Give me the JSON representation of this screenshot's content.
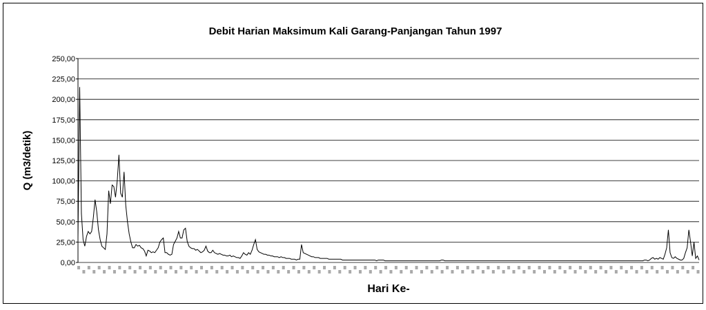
{
  "chart_data": {
    "type": "line",
    "title": "Debit Harian Maksimum Kali Garang-Panjangan Tahun 1997",
    "y_label": "Q (m3/detik)",
    "x_label": "Hari Ke-",
    "color": "#000000",
    "grid": true,
    "ylim": [
      0,
      250
    ],
    "yticks": [
      {
        "value": 0,
        "label": "0,00"
      },
      {
        "value": 25,
        "label": "25,00"
      },
      {
        "value": 50,
        "label": "50,00"
      },
      {
        "value": 75,
        "label": "75,00"
      },
      {
        "value": 100,
        "label": "100,00"
      },
      {
        "value": 125,
        "label": "125,00"
      },
      {
        "value": 150,
        "label": "150,00"
      },
      {
        "value": 175,
        "label": "175,00"
      },
      {
        "value": 200,
        "label": "200,00"
      },
      {
        "value": 225,
        "label": "225,00"
      },
      {
        "value": 250,
        "label": "250,00"
      }
    ],
    "values": [
      30,
      215,
      60,
      28,
      20,
      32,
      38,
      35,
      38,
      55,
      77,
      62,
      40,
      28,
      20,
      18,
      16,
      35,
      88,
      72,
      95,
      93,
      80,
      100,
      132,
      85,
      80,
      111,
      70,
      50,
      35,
      25,
      18,
      18,
      22,
      20,
      21,
      18,
      17,
      14,
      8,
      15,
      14,
      12,
      13,
      12,
      15,
      18,
      25,
      28,
      30,
      12,
      12,
      10,
      9,
      10,
      22,
      26,
      30,
      38,
      30,
      30,
      40,
      42,
      26,
      20,
      18,
      17,
      17,
      15,
      16,
      14,
      12,
      13,
      15,
      20,
      14,
      12,
      12,
      15,
      12,
      11,
      10,
      11,
      10,
      9,
      9,
      8,
      8,
      9,
      7,
      8,
      7,
      6,
      6,
      5,
      8,
      12,
      10,
      9,
      12,
      10,
      15,
      22,
      28,
      16,
      13,
      12,
      11,
      10,
      10,
      9,
      9,
      8,
      8,
      7,
      7,
      7,
      6,
      7,
      6,
      6,
      5,
      5,
      5,
      4,
      4,
      4,
      3,
      4,
      4,
      22,
      12,
      11,
      10,
      9,
      8,
      7,
      7,
      6,
      6,
      6,
      5,
      5,
      5,
      5,
      5,
      4,
      4,
      4,
      4,
      4,
      4,
      4,
      4,
      3,
      3,
      3,
      3,
      3,
      3,
      3,
      3,
      3,
      3,
      3,
      3,
      3,
      3,
      3,
      3,
      3,
      3,
      3,
      3,
      2,
      3,
      3,
      3,
      3,
      2,
      2,
      2,
      2,
      2,
      2,
      2,
      2,
      2,
      2,
      2,
      2,
      2,
      2,
      2,
      2,
      2,
      2,
      2,
      2,
      2,
      2,
      2,
      2,
      2,
      2,
      2,
      2,
      2,
      2,
      2,
      2,
      2,
      3,
      3,
      2,
      2,
      2,
      2,
      2,
      2,
      2,
      2,
      2,
      2,
      2,
      2,
      2,
      2,
      2,
      2,
      2,
      2,
      2,
      2,
      2,
      2,
      2,
      2,
      2,
      2,
      2,
      2,
      2,
      2,
      2,
      2,
      2,
      2,
      2,
      2,
      2,
      2,
      2,
      2,
      2,
      2,
      2,
      2,
      2,
      2,
      2,
      2,
      2,
      2,
      2,
      2,
      2,
      2,
      2,
      2,
      2,
      2,
      2,
      2,
      2,
      2,
      2,
      2,
      2,
      2,
      2,
      2,
      2,
      2,
      2,
      2,
      2,
      2,
      2,
      2,
      2,
      2,
      2,
      2,
      2,
      2,
      2,
      2,
      2,
      2,
      2,
      2,
      2,
      2,
      2,
      2,
      2,
      2,
      2,
      2,
      2,
      2,
      2,
      2,
      2,
      2,
      2,
      2,
      2,
      2,
      2,
      2,
      2,
      2,
      2,
      2,
      2,
      2,
      2,
      2,
      2,
      3,
      3,
      2,
      3,
      5,
      6,
      4,
      5,
      4,
      6,
      5,
      4,
      10,
      18,
      40,
      12,
      6,
      5,
      7,
      5,
      4,
      3,
      3,
      5,
      12,
      18,
      40,
      25,
      8,
      25,
      5,
      8,
      3
    ]
  }
}
